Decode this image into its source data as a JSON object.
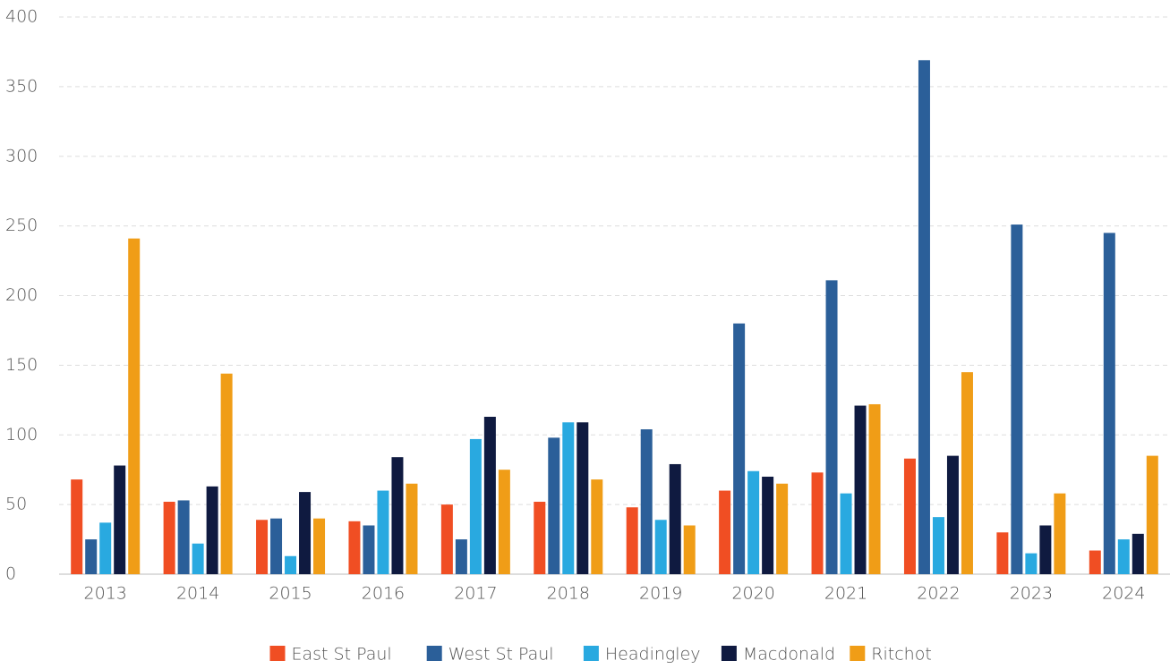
{
  "chart_data": {
    "type": "bar",
    "categories": [
      "2013",
      "2014",
      "2015",
      "2016",
      "2017",
      "2018",
      "2019",
      "2020",
      "2021",
      "2022",
      "2023",
      "2024"
    ],
    "series": [
      {
        "name": "East St Paul",
        "color": "#f04e23",
        "values": [
          68,
          52,
          39,
          38,
          50,
          52,
          48,
          60,
          73,
          83,
          30,
          17
        ]
      },
      {
        "name": "West St Paul",
        "color": "#2b5f99",
        "values": [
          25,
          53,
          40,
          35,
          25,
          98,
          104,
          180,
          211,
          369,
          251,
          245
        ]
      },
      {
        "name": "Headingley",
        "color": "#29a9e0",
        "values": [
          37,
          22,
          13,
          60,
          97,
          109,
          39,
          74,
          58,
          41,
          15,
          25
        ]
      },
      {
        "name": "Macdonald",
        "color": "#0f1a40",
        "values": [
          78,
          63,
          59,
          84,
          113,
          109,
          79,
          70,
          121,
          85,
          35,
          29
        ]
      },
      {
        "name": "Ritchot",
        "color": "#f09d17",
        "values": [
          241,
          144,
          40,
          65,
          75,
          68,
          35,
          65,
          122,
          145,
          58,
          85
        ]
      }
    ],
    "ylim": [
      0,
      400
    ],
    "yticks": [
      0,
      50,
      100,
      150,
      200,
      250,
      300,
      350,
      400
    ],
    "grid": true,
    "legend": "bottom"
  }
}
